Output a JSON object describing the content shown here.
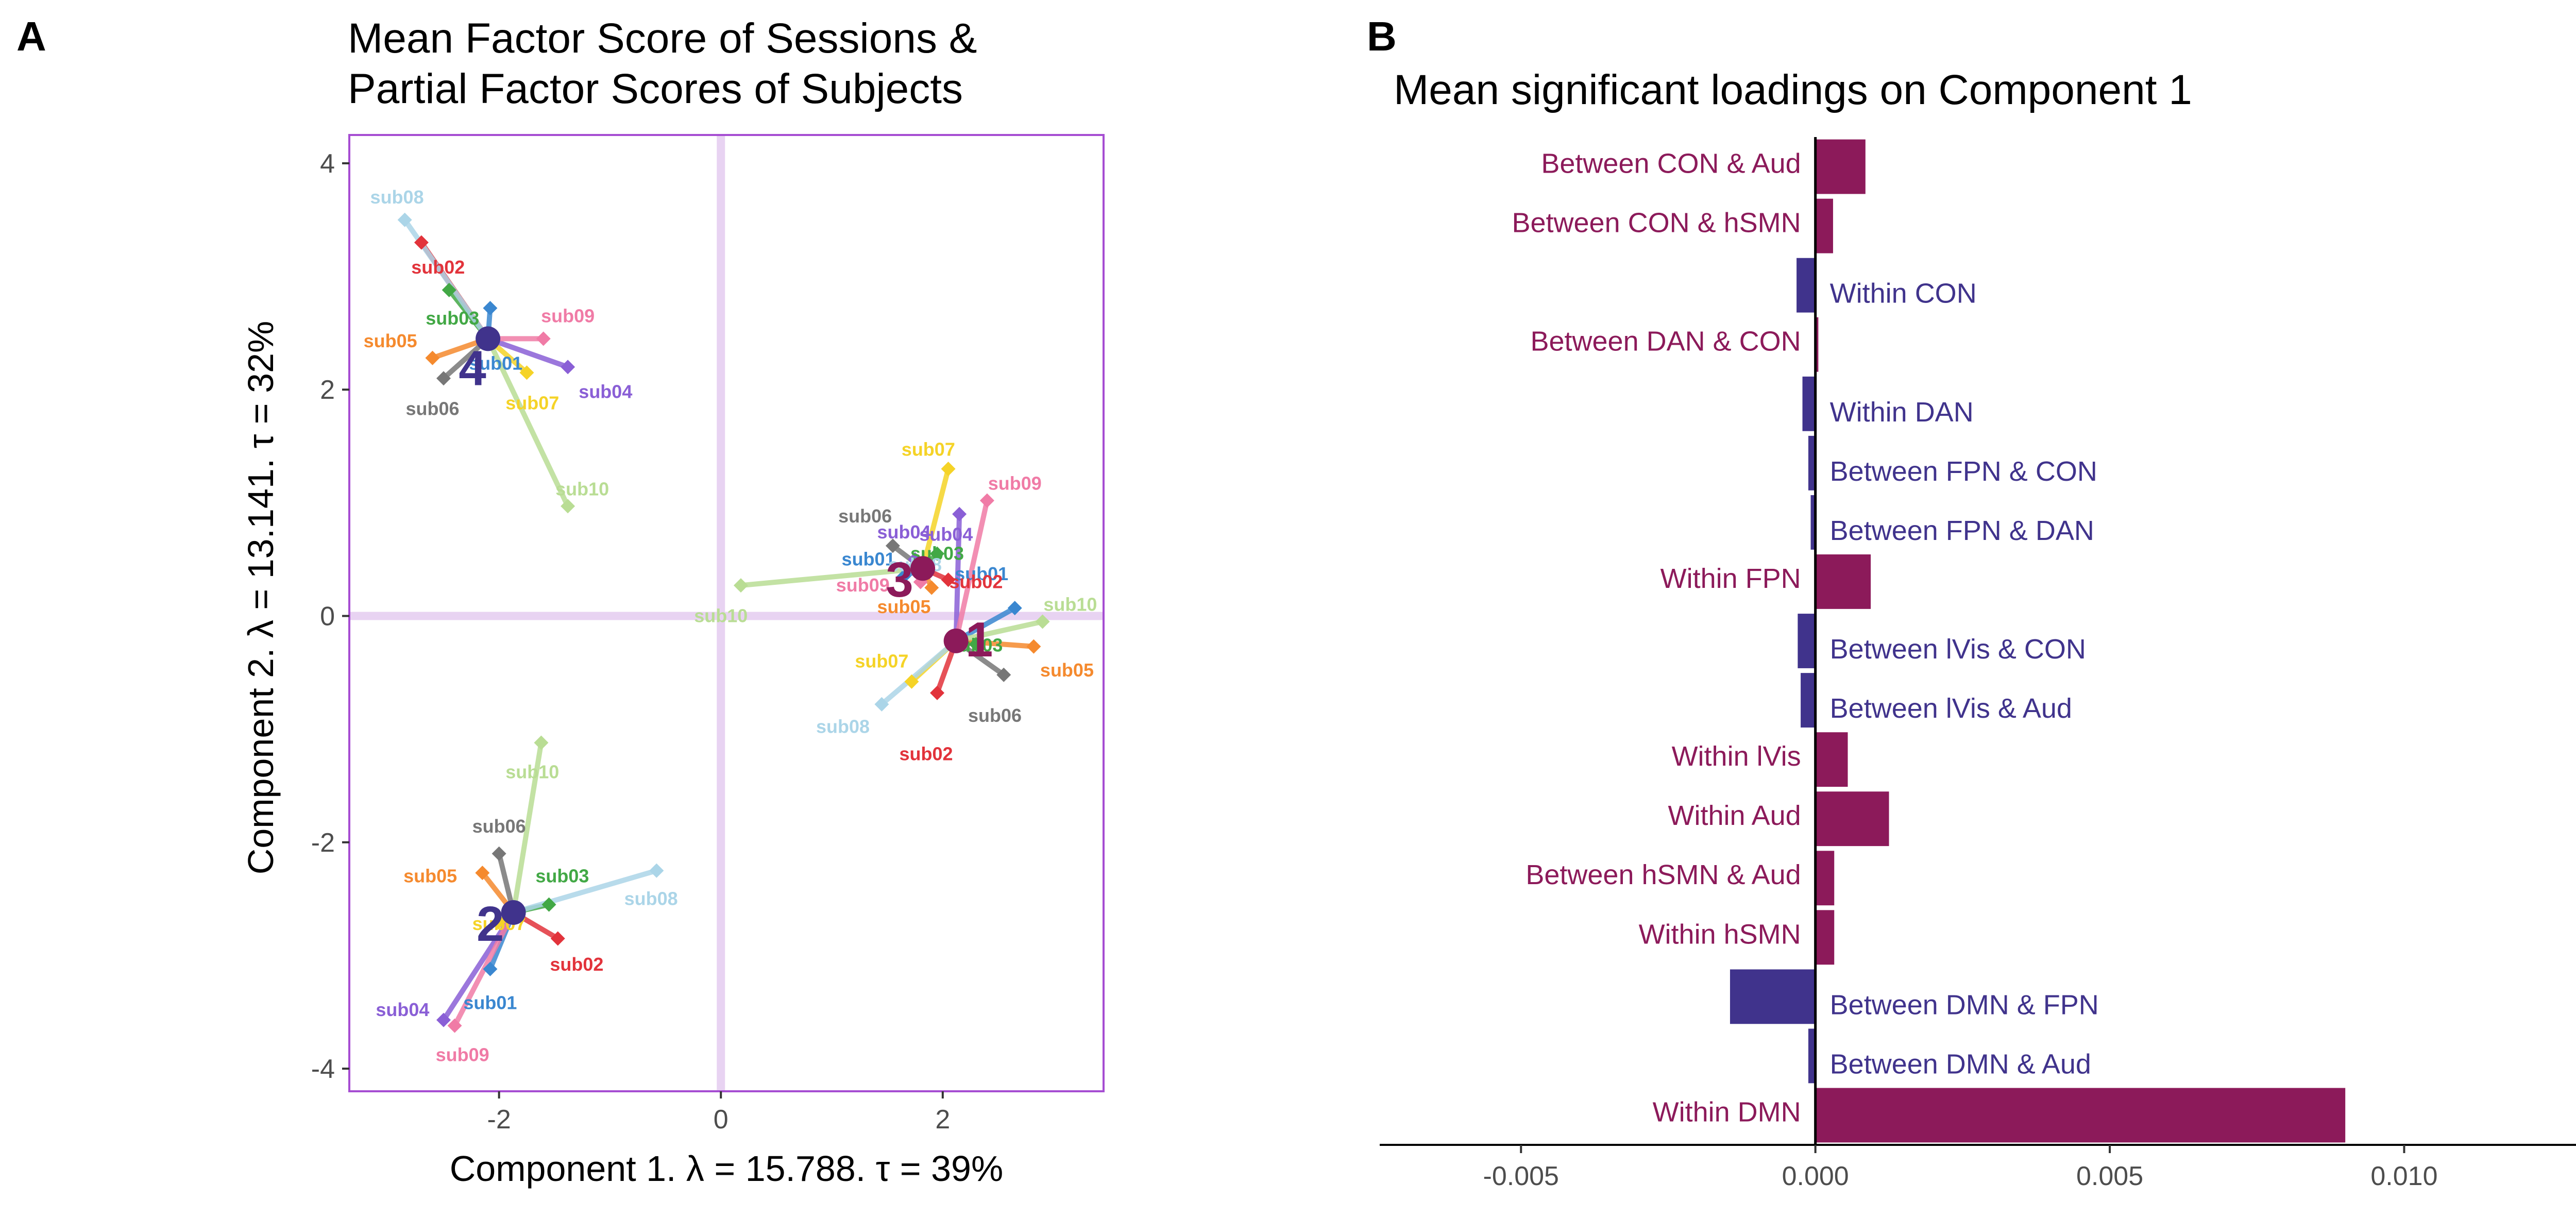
{
  "colors": {
    "magenta": "#8c1a5a",
    "indigo": "#40338c",
    "frame": "#a64dd2",
    "origin_lines": "#e8d3f2"
  },
  "chart_data": [
    {
      "panel": "A",
      "type": "scatter",
      "title_lines": [
        "Mean Factor Score of Sessions &",
        "Partial Factor Scores of Subjects"
      ],
      "xlabel": "Component 1.   λ = 15.788.  τ = 39%",
      "ylabel": "Component 2.   λ = 13.141.  τ = 32%",
      "xlim": [
        -3.35,
        3.45
      ],
      "ylim": [
        -4.2,
        4.25
      ],
      "xticks": [
        -2,
        0,
        2
      ],
      "yticks": [
        -4,
        -2,
        0,
        2,
        4
      ],
      "xtick_labels": [
        "-2",
        "0",
        "2"
      ],
      "ytick_labels": [
        "-4",
        "-2",
        "0",
        "2",
        "4"
      ],
      "subject_colors": {
        "sub01": "#3a87d0",
        "sub02": "#e2333b",
        "sub03": "#42a845",
        "sub04": "#8a5fd6",
        "sub05": "#f58a2e",
        "sub06": "#777777",
        "sub07": "#f5d327",
        "sub08": "#abd5e8",
        "sub09": "#f07ba6",
        "sub10": "#b9dd94"
      },
      "sessions": [
        {
          "id": "1",
          "x": 2.12,
          "y": -0.22,
          "color": "#8c1a5a",
          "label_side": "right",
          "subjects": [
            {
              "name": "sub01",
              "x": 2.65,
              "y": 0.07,
              "label": "sub01",
              "lx": 2.35,
              "ly": 0.37
            },
            {
              "name": "sub02",
              "x": 1.95,
              "y": -0.68,
              "label": "sub02",
              "lx": 1.85,
              "ly": -1.22
            },
            {
              "name": "sub03",
              "x": 2.3,
              "y": -0.25,
              "label": "sub03",
              "lx": 2.3,
              "ly": -0.26
            },
            {
              "name": "sub04",
              "x": 2.15,
              "y": 0.9,
              "label": "sub04",
              "lx": 2.03,
              "ly": 0.72
            },
            {
              "name": "sub05",
              "x": 2.82,
              "y": -0.27,
              "label": "sub05",
              "lx": 3.12,
              "ly": -0.48
            },
            {
              "name": "sub06",
              "x": 2.55,
              "y": -0.52,
              "label": "sub06",
              "lx": 2.47,
              "ly": -0.88
            },
            {
              "name": "sub07",
              "x": 1.72,
              "y": -0.58,
              "label": "sub07",
              "lx": 1.45,
              "ly": -0.4
            },
            {
              "name": "sub08",
              "x": 1.45,
              "y": -0.78,
              "label": "sub08",
              "lx": 1.1,
              "ly": -0.98
            },
            {
              "name": "sub09",
              "x": 2.4,
              "y": 1.02,
              "label": "sub09",
              "lx": 2.65,
              "ly": 1.17
            },
            {
              "name": "sub10",
              "x": 2.9,
              "y": -0.05,
              "label": "sub10",
              "lx": 3.15,
              "ly": 0.1
            }
          ]
        },
        {
          "id": "2",
          "x": -1.87,
          "y": -2.62,
          "color": "#40338c",
          "label_side": "left",
          "subjects": [
            {
              "name": "sub01",
              "x": -2.08,
              "y": -3.12,
              "label": "sub01",
              "lx": -2.08,
              "ly": -3.42
            },
            {
              "name": "sub02",
              "x": -1.47,
              "y": -2.85,
              "label": "sub02",
              "lx": -1.3,
              "ly": -3.08
            },
            {
              "name": "sub03",
              "x": -1.55,
              "y": -2.55,
              "label": "sub03",
              "lx": -1.43,
              "ly": -2.3
            },
            {
              "name": "sub04",
              "x": -2.5,
              "y": -3.57,
              "label": "sub04",
              "lx": -2.87,
              "ly": -3.48
            },
            {
              "name": "sub05",
              "x": -2.15,
              "y": -2.27,
              "label": "sub05",
              "lx": -2.62,
              "ly": -2.3
            },
            {
              "name": "sub06",
              "x": -2.0,
              "y": -2.1,
              "label": "sub06",
              "lx": -2.0,
              "ly": -1.86
            },
            {
              "name": "sub07",
              "x": -2.0,
              "y": -2.7,
              "label": "sub07",
              "lx": -2.0,
              "ly": -2.72
            },
            {
              "name": "sub08",
              "x": -0.58,
              "y": -2.25,
              "label": "sub08",
              "lx": -0.63,
              "ly": -2.5
            },
            {
              "name": "sub09",
              "x": -2.4,
              "y": -3.62,
              "label": "sub09",
              "lx": -2.33,
              "ly": -3.88
            },
            {
              "name": "sub10",
              "x": -1.62,
              "y": -1.12,
              "label": "sub10",
              "lx": -1.7,
              "ly": -1.38
            }
          ]
        },
        {
          "id": "3",
          "x": 1.82,
          "y": 0.42,
          "color": "#8c1a5a",
          "label_side": "left",
          "subjects": [
            {
              "name": "sub01",
              "x": 1.65,
              "y": 0.35,
              "label": "sub01",
              "lx": 1.33,
              "ly": 0.5
            },
            {
              "name": "sub02",
              "x": 2.05,
              "y": 0.32,
              "label": "sub02",
              "lx": 2.3,
              "ly": 0.3
            },
            {
              "name": "sub03",
              "x": 1.95,
              "y": 0.55,
              "label": "sub03",
              "lx": 1.95,
              "ly": 0.55
            },
            {
              "name": "sub04",
              "x": 1.75,
              "y": 0.5,
              "label": "sub04",
              "lx": 1.65,
              "ly": 0.74
            },
            {
              "name": "sub05",
              "x": 1.9,
              "y": 0.25,
              "label": "sub05",
              "lx": 1.65,
              "ly": 0.08
            },
            {
              "name": "sub06",
              "x": 1.55,
              "y": 0.62,
              "label": "sub06",
              "lx": 1.3,
              "ly": 0.88
            },
            {
              "name": "sub07",
              "x": 2.05,
              "y": 1.3,
              "label": "sub07",
              "lx": 1.87,
              "ly": 1.47
            },
            {
              "name": "sub08",
              "x": 1.75,
              "y": 0.45,
              "label": "sub08",
              "lx": 1.75,
              "ly": 0.45
            },
            {
              "name": "sub09",
              "x": 1.8,
              "y": 0.3,
              "label": "sub09",
              "lx": 1.28,
              "ly": 0.27
            },
            {
              "name": "sub10",
              "x": 0.18,
              "y": 0.27,
              "label": "sub10",
              "lx": 0.0,
              "ly": 0.0
            }
          ]
        },
        {
          "id": "4",
          "x": -2.1,
          "y": 2.45,
          "color": "#40338c",
          "label_side": "below",
          "subjects": [
            {
              "name": "sub01",
              "x": -2.08,
              "y": 2.72,
              "label": "sub01",
              "lx": -2.03,
              "ly": 2.23
            },
            {
              "name": "sub02",
              "x": -2.7,
              "y": 3.3,
              "label": "sub02",
              "lx": -2.55,
              "ly": 3.08
            },
            {
              "name": "sub03",
              "x": -2.45,
              "y": 2.88,
              "label": "sub03",
              "lx": -2.42,
              "ly": 2.63
            },
            {
              "name": "sub04",
              "x": -1.38,
              "y": 2.2,
              "label": "sub04",
              "lx": -1.04,
              "ly": 1.98
            },
            {
              "name": "sub05",
              "x": -2.6,
              "y": 2.28,
              "label": "sub05",
              "lx": -2.98,
              "ly": 2.43
            },
            {
              "name": "sub06",
              "x": -2.5,
              "y": 2.1,
              "label": "sub06",
              "lx": -2.6,
              "ly": 1.83
            },
            {
              "name": "sub07",
              "x": -1.75,
              "y": 2.15,
              "label": "sub07",
              "lx": -1.7,
              "ly": 1.88
            },
            {
              "name": "sub08",
              "x": -2.85,
              "y": 3.5,
              "label": "sub08",
              "lx": -2.92,
              "ly": 3.7
            },
            {
              "name": "sub09",
              "x": -1.6,
              "y": 2.45,
              "label": "sub09",
              "lx": -1.38,
              "ly": 2.65
            },
            {
              "name": "sub10",
              "x": -1.38,
              "y": 0.97,
              "label": "sub10",
              "lx": -1.25,
              "ly": 1.12
            }
          ]
        }
      ]
    },
    {
      "panel": "B",
      "type": "bar",
      "orientation": "horizontal",
      "title": "Mean significant loadings on Component 1",
      "xlim": [
        -0.0074,
        0.0148
      ],
      "xticks": [
        -0.005,
        0.0,
        0.005,
        0.01
      ],
      "xtick_labels": [
        "-0.005",
        "0.000",
        "0.005",
        "0.010"
      ],
      "categories": [
        "Between CON & Aud",
        "Between CON & hSMN",
        "Within CON",
        "Between DAN & CON",
        "Within DAN",
        "Between FPN & CON",
        "Between FPN & DAN",
        "Within FPN",
        "Between lVis & CON",
        "Between lVis & Aud",
        "Within lVis",
        "Within Aud",
        "Between hSMN & Aud",
        "Within hSMN",
        "Between DMN & FPN",
        "Between DMN & Aud",
        "Within DMN"
      ],
      "values": [
        0.00085,
        0.0003,
        -0.00032,
        5e-05,
        -0.00022,
        -0.00012,
        -8e-05,
        0.00094,
        -0.0003,
        -0.00025,
        0.00055,
        0.00125,
        0.00032,
        0.00032,
        -0.00145,
        -0.00012,
        0.009
      ]
    }
  ]
}
